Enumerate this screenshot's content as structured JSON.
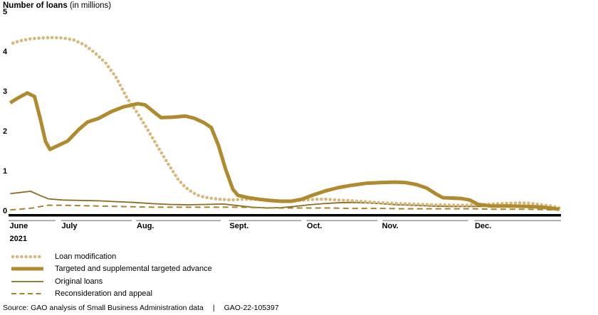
{
  "title": {
    "bold": "Number of loans",
    "normal": "(in millions)"
  },
  "source": {
    "prefix": "Source: GAO analysis of Small Business Administration data",
    "separator": "|",
    "report_id": "GAO-22-105397"
  },
  "chart_data": {
    "type": "line",
    "title": "Number of loans (in millions)",
    "xlabel": "",
    "ylabel": "Number of loans (in millions)",
    "ylim": [
      0,
      5
    ],
    "y_ticks": [
      0,
      1,
      2,
      3,
      4,
      5
    ],
    "grid": false,
    "legend_position": "bottom-left",
    "year_label": "2021",
    "x_axis_note": "x expressed as percent of time axis, June 2021 through Dec 2021",
    "months": [
      {
        "label": "June",
        "start_pct": 0,
        "end_pct": 8.5,
        "label_pct": 0.2
      },
      {
        "label": "July",
        "start_pct": 9.5,
        "end_pct": 22.3,
        "label_pct": 9.6
      },
      {
        "label": "Aug.",
        "start_pct": 23.1,
        "end_pct": 38.4,
        "label_pct": 23.2
      },
      {
        "label": "Sept.",
        "start_pct": 39.9,
        "end_pct": 53.0,
        "label_pct": 40.0
      },
      {
        "label": "Oct.",
        "start_pct": 53.9,
        "end_pct": 66.8,
        "label_pct": 54.0
      },
      {
        "label": "Nov.",
        "start_pct": 67.7,
        "end_pct": 83.2,
        "label_pct": 67.6
      },
      {
        "label": "Dec.",
        "start_pct": 84.3,
        "end_pct": 100,
        "label_pct": 84.4
      }
    ],
    "series": [
      {
        "name": "Loan modification",
        "style": "dotted",
        "color": "#d5b87a",
        "points": [
          [
            0.8,
            4.22
          ],
          [
            2.1,
            4.28
          ],
          [
            4.0,
            4.33
          ],
          [
            5.9,
            4.35
          ],
          [
            7.9,
            4.36
          ],
          [
            9.8,
            4.35
          ],
          [
            11.8,
            4.3
          ],
          [
            13.7,
            4.18
          ],
          [
            15.6,
            3.98
          ],
          [
            17.6,
            3.72
          ],
          [
            19.5,
            3.35
          ],
          [
            21.4,
            2.85
          ],
          [
            23.4,
            2.45
          ],
          [
            25.3,
            2.02
          ],
          [
            27.3,
            1.55
          ],
          [
            29.2,
            1.12
          ],
          [
            30.7,
            0.8
          ],
          [
            32.0,
            0.6
          ],
          [
            33.3,
            0.47
          ],
          [
            34.6,
            0.38
          ],
          [
            36.3,
            0.33
          ],
          [
            38.2,
            0.3
          ],
          [
            40.2,
            0.28
          ],
          [
            42.1,
            0.3
          ],
          [
            44.1,
            0.3
          ],
          [
            46.0,
            0.28
          ],
          [
            47.9,
            0.26
          ],
          [
            49.9,
            0.25
          ],
          [
            51.8,
            0.26
          ],
          [
            53.7,
            0.28
          ],
          [
            55.7,
            0.3
          ],
          [
            57.6,
            0.3
          ],
          [
            59.6,
            0.28
          ],
          [
            61.5,
            0.27
          ],
          [
            63.4,
            0.25
          ],
          [
            65.4,
            0.23
          ],
          [
            67.3,
            0.21
          ],
          [
            69.3,
            0.2
          ],
          [
            71.2,
            0.19
          ],
          [
            73.1,
            0.18
          ],
          [
            75.1,
            0.17
          ],
          [
            77.0,
            0.16
          ],
          [
            78.9,
            0.16
          ],
          [
            80.9,
            0.15
          ],
          [
            82.8,
            0.15
          ],
          [
            84.8,
            0.16
          ],
          [
            86.7,
            0.17
          ],
          [
            88.6,
            0.19
          ],
          [
            90.6,
            0.2
          ],
          [
            92.5,
            0.21
          ],
          [
            94.4,
            0.2
          ],
          [
            96.4,
            0.16
          ],
          [
            98.3,
            0.13
          ],
          [
            99.7,
            0.08
          ]
        ]
      },
      {
        "name": "Targeted and supplemental targeted advance",
        "style": "thick-solid",
        "color": "#b08a2e",
        "points": [
          [
            0.3,
            2.72
          ],
          [
            1.4,
            2.82
          ],
          [
            3.4,
            2.97
          ],
          [
            4.7,
            2.88
          ],
          [
            5.7,
            2.35
          ],
          [
            6.7,
            1.75
          ],
          [
            7.5,
            1.55
          ],
          [
            8.5,
            1.62
          ],
          [
            10.7,
            1.76
          ],
          [
            12.7,
            2.05
          ],
          [
            14.3,
            2.24
          ],
          [
            16.3,
            2.33
          ],
          [
            18.6,
            2.5
          ],
          [
            20.8,
            2.62
          ],
          [
            23.4,
            2.7
          ],
          [
            24.7,
            2.67
          ],
          [
            26.4,
            2.48
          ],
          [
            27.6,
            2.35
          ],
          [
            29.8,
            2.36
          ],
          [
            32.0,
            2.39
          ],
          [
            33.7,
            2.33
          ],
          [
            35.4,
            2.22
          ],
          [
            36.7,
            2.1
          ],
          [
            38.0,
            1.65
          ],
          [
            39.3,
            1.05
          ],
          [
            40.6,
            0.55
          ],
          [
            41.5,
            0.4
          ],
          [
            43.4,
            0.34
          ],
          [
            45.3,
            0.3
          ],
          [
            47.3,
            0.27
          ],
          [
            49.2,
            0.25
          ],
          [
            51.2,
            0.25
          ],
          [
            53.1,
            0.3
          ],
          [
            55.0,
            0.4
          ],
          [
            57.4,
            0.51
          ],
          [
            59.6,
            0.59
          ],
          [
            62.1,
            0.65
          ],
          [
            64.7,
            0.7
          ],
          [
            67.3,
            0.72
          ],
          [
            69.9,
            0.73
          ],
          [
            71.8,
            0.72
          ],
          [
            73.8,
            0.67
          ],
          [
            75.7,
            0.58
          ],
          [
            77.3,
            0.44
          ],
          [
            78.6,
            0.34
          ],
          [
            81.9,
            0.32
          ],
          [
            83.5,
            0.28
          ],
          [
            85.0,
            0.17
          ],
          [
            87.3,
            0.13
          ],
          [
            90.6,
            0.13
          ],
          [
            93.8,
            0.12
          ],
          [
            96.6,
            0.1
          ],
          [
            99.7,
            0.05
          ]
        ]
      },
      {
        "name": "Original loans",
        "style": "thin-solid",
        "color": "#8c6b24",
        "points": [
          [
            0.3,
            0.44
          ],
          [
            2.1,
            0.47
          ],
          [
            4.0,
            0.5
          ],
          [
            5.6,
            0.4
          ],
          [
            7.2,
            0.31
          ],
          [
            9.8,
            0.28
          ],
          [
            13.1,
            0.27
          ],
          [
            16.3,
            0.26
          ],
          [
            19.5,
            0.24
          ],
          [
            22.7,
            0.22
          ],
          [
            26.0,
            0.19
          ],
          [
            29.2,
            0.17
          ],
          [
            32.4,
            0.16
          ],
          [
            35.7,
            0.17
          ],
          [
            38.9,
            0.18
          ],
          [
            41.5,
            0.14
          ],
          [
            44.1,
            0.1
          ],
          [
            46.6,
            0.08
          ],
          [
            49.2,
            0.09
          ],
          [
            51.8,
            0.12
          ],
          [
            54.4,
            0.16
          ],
          [
            57.0,
            0.19
          ],
          [
            59.6,
            0.21
          ],
          [
            62.1,
            0.22
          ],
          [
            64.7,
            0.21
          ],
          [
            67.3,
            0.19
          ],
          [
            70.3,
            0.16
          ],
          [
            73.1,
            0.15
          ],
          [
            76.4,
            0.13
          ],
          [
            79.6,
            0.12
          ],
          [
            82.8,
            0.12
          ],
          [
            86.0,
            0.12
          ],
          [
            89.3,
            0.13
          ],
          [
            92.5,
            0.13
          ],
          [
            95.3,
            0.12
          ],
          [
            97.7,
            0.1
          ],
          [
            99.7,
            0.06
          ]
        ]
      },
      {
        "name": "Reconsideration and appeal",
        "style": "dashed",
        "color": "#a7832e",
        "points": [
          [
            0.3,
            0.03
          ],
          [
            2.1,
            0.05
          ],
          [
            4.4,
            0.08
          ],
          [
            5.9,
            0.12
          ],
          [
            7.2,
            0.15
          ],
          [
            9.8,
            0.15
          ],
          [
            13.1,
            0.14
          ],
          [
            16.3,
            0.13
          ],
          [
            19.5,
            0.12
          ],
          [
            22.7,
            0.11
          ],
          [
            26.0,
            0.1
          ],
          [
            29.2,
            0.1
          ],
          [
            32.4,
            0.1
          ],
          [
            35.7,
            0.1
          ],
          [
            38.9,
            0.1
          ],
          [
            42.1,
            0.1
          ],
          [
            45.3,
            0.09
          ],
          [
            48.6,
            0.08
          ],
          [
            51.8,
            0.08
          ],
          [
            55.0,
            0.08
          ],
          [
            58.3,
            0.08
          ],
          [
            61.5,
            0.07
          ],
          [
            64.7,
            0.07
          ],
          [
            67.9,
            0.07
          ],
          [
            71.2,
            0.06
          ],
          [
            74.4,
            0.06
          ],
          [
            77.6,
            0.06
          ],
          [
            80.9,
            0.06
          ],
          [
            84.1,
            0.06
          ],
          [
            87.3,
            0.05
          ],
          [
            90.6,
            0.05
          ],
          [
            93.8,
            0.05
          ],
          [
            97.0,
            0.04
          ],
          [
            99.7,
            0.03
          ]
        ]
      }
    ],
    "axis_colors": {
      "baseline": "#000000",
      "month_rule": "#9c9c9c"
    }
  }
}
